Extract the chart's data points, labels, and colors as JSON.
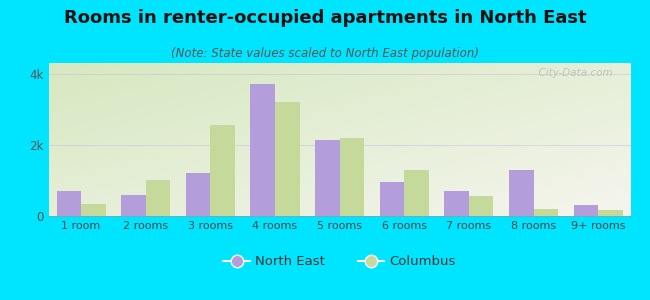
{
  "title": "Rooms in renter-occupied apartments in North East",
  "subtitle": "(Note: State values scaled to North East population)",
  "categories": [
    "1 room",
    "2 rooms",
    "3 rooms",
    "4 rooms",
    "5 rooms",
    "6 rooms",
    "7 rooms",
    "8 rooms",
    "9+ rooms"
  ],
  "north_east": [
    700,
    600,
    1200,
    3700,
    2150,
    950,
    700,
    1300,
    300
  ],
  "columbus": [
    350,
    1000,
    2550,
    3200,
    2200,
    1300,
    550,
    200,
    175
  ],
  "ne_color": "#b39ddb",
  "col_color": "#c5d99b",
  "background_outer": "#00e5ff",
  "ylim": [
    0,
    4300
  ],
  "yticks": [
    0,
    2000,
    4000
  ],
  "ytick_labels": [
    "0",
    "2k",
    "4k"
  ],
  "bar_width": 0.38,
  "title_fontsize": 13,
  "subtitle_fontsize": 8.5,
  "legend_labels": [
    "North East",
    "Columbus"
  ],
  "watermark": "  City-Data.com"
}
